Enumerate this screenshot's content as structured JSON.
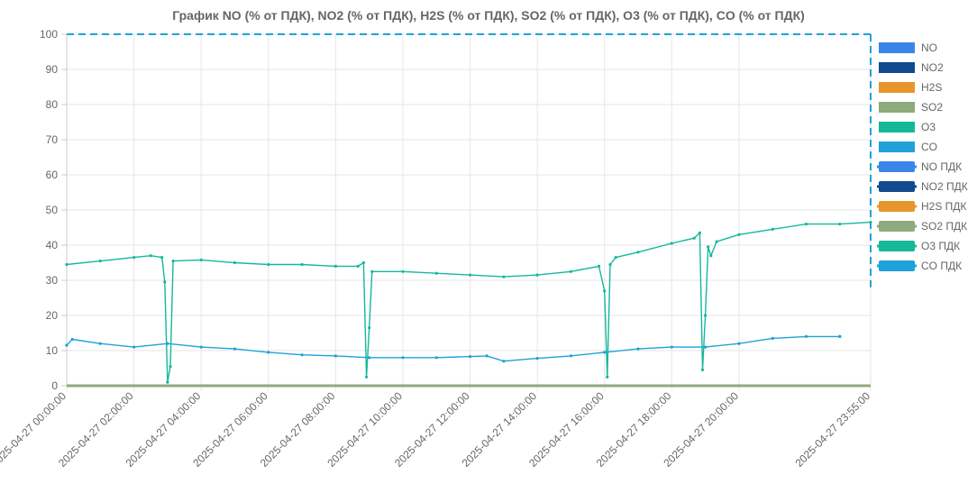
{
  "chart_data": {
    "type": "line",
    "title": "График  NO (% от ПДК), NO2 (% от ПДК), H2S (% от ПДК), SO2 (% от ПДК), O3 (% от ПДК), CO (% от ПДК)",
    "xlabel": "",
    "ylabel": "",
    "ylim": [
      0,
      100
    ],
    "y_ticks": [
      0,
      10,
      20,
      30,
      40,
      50,
      60,
      70,
      80,
      90,
      100
    ],
    "x_range": [
      "2025-04-27 00:00:00",
      "2025-04-27 23:55:00"
    ],
    "x_ticks": [
      "2025-04-27 00:00:00",
      "2025-04-27 02:00:00",
      "2025-04-27 04:00:00",
      "2025-04-27 06:00:00",
      "2025-04-27 08:00:00",
      "2025-04-27 10:00:00",
      "2025-04-27 12:00:00",
      "2025-04-27 14:00:00",
      "2025-04-27 16:00:00",
      "2025-04-27 18:00:00",
      "2025-04-27 20:00:00",
      "2025-04-27 23:55:00"
    ],
    "grid": true,
    "legend_position": "right",
    "series": [
      {
        "name": "NO",
        "color": "#3a86e8",
        "style": "solid",
        "points": [
          [
            "2025-04-27 00:00:00",
            0
          ],
          [
            "2025-04-27 23:55:00",
            0
          ]
        ]
      },
      {
        "name": "NO2",
        "color": "#124a8f",
        "style": "solid",
        "points": [
          [
            "2025-04-27 00:00:00",
            0
          ],
          [
            "2025-04-27 23:55:00",
            0
          ]
        ]
      },
      {
        "name": "H2S",
        "color": "#e8962b",
        "style": "solid",
        "points": [
          [
            "2025-04-27 00:00:00",
            0
          ],
          [
            "2025-04-27 23:55:00",
            0
          ]
        ]
      },
      {
        "name": "SO2",
        "color": "#8faa7c",
        "style": "solid",
        "points": [
          [
            "2025-04-27 00:00:00",
            0
          ],
          [
            "2025-04-27 23:55:00",
            0
          ]
        ]
      },
      {
        "name": "O3",
        "color": "#16b89a",
        "style": "solid",
        "points": [
          [
            "2025-04-27 00:00:00",
            34.5
          ],
          [
            "2025-04-27 01:00:00",
            35.5
          ],
          [
            "2025-04-27 02:00:00",
            36.5
          ],
          [
            "2025-04-27 02:30:00",
            37.0
          ],
          [
            "2025-04-27 02:50:00",
            36.5
          ],
          [
            "2025-04-27 02:55:00",
            29.5
          ],
          [
            "2025-04-27 03:00:00",
            1.0
          ],
          [
            "2025-04-27 03:05:00",
            5.5
          ],
          [
            "2025-04-27 03:10:00",
            35.5
          ],
          [
            "2025-04-27 04:00:00",
            35.8
          ],
          [
            "2025-04-27 05:00:00",
            35.0
          ],
          [
            "2025-04-27 06:00:00",
            34.5
          ],
          [
            "2025-04-27 07:00:00",
            34.5
          ],
          [
            "2025-04-27 08:00:00",
            34.0
          ],
          [
            "2025-04-27 08:40:00",
            34.0
          ],
          [
            "2025-04-27 08:50:00",
            35.0
          ],
          [
            "2025-04-27 08:55:00",
            2.5
          ],
          [
            "2025-04-27 09:00:00",
            16.5
          ],
          [
            "2025-04-27 09:05:00",
            32.5
          ],
          [
            "2025-04-27 10:00:00",
            32.5
          ],
          [
            "2025-04-27 11:00:00",
            32.0
          ],
          [
            "2025-04-27 12:00:00",
            31.5
          ],
          [
            "2025-04-27 13:00:00",
            31.0
          ],
          [
            "2025-04-27 14:00:00",
            31.5
          ],
          [
            "2025-04-27 15:00:00",
            32.5
          ],
          [
            "2025-04-27 15:50:00",
            34.0
          ],
          [
            "2025-04-27 16:00:00",
            27.0
          ],
          [
            "2025-04-27 16:05:00",
            2.5
          ],
          [
            "2025-04-27 16:10:00",
            34.5
          ],
          [
            "2025-04-27 16:20:00",
            36.5
          ],
          [
            "2025-04-27 17:00:00",
            38.0
          ],
          [
            "2025-04-27 18:00:00",
            40.5
          ],
          [
            "2025-04-27 18:40:00",
            42.0
          ],
          [
            "2025-04-27 18:50:00",
            43.5
          ],
          [
            "2025-04-27 18:55:00",
            4.5
          ],
          [
            "2025-04-27 19:00:00",
            20.0
          ],
          [
            "2025-04-27 19:05:00",
            39.5
          ],
          [
            "2025-04-27 19:10:00",
            37.0
          ],
          [
            "2025-04-27 19:20:00",
            41.0
          ],
          [
            "2025-04-27 20:00:00",
            43.0
          ],
          [
            "2025-04-27 21:00:00",
            44.5
          ],
          [
            "2025-04-27 22:00:00",
            46.0
          ],
          [
            "2025-04-27 23:00:00",
            46.0
          ],
          [
            "2025-04-27 23:55:00",
            46.5
          ]
        ]
      },
      {
        "name": "CO",
        "color": "#1fa2d8",
        "style": "solid",
        "points": [
          [
            "2025-04-27 00:00:00",
            11.5
          ],
          [
            "2025-04-27 00:10:00",
            13.2
          ],
          [
            "2025-04-27 01:00:00",
            12.0
          ],
          [
            "2025-04-27 02:00:00",
            11.0
          ],
          [
            "2025-04-27 03:00:00",
            12.0
          ],
          [
            "2025-04-27 04:00:00",
            11.0
          ],
          [
            "2025-04-27 05:00:00",
            10.5
          ],
          [
            "2025-04-27 06:00:00",
            9.5
          ],
          [
            "2025-04-27 07:00:00",
            8.8
          ],
          [
            "2025-04-27 08:00:00",
            8.5
          ],
          [
            "2025-04-27 09:00:00",
            8.0
          ],
          [
            "2025-04-27 10:00:00",
            8.0
          ],
          [
            "2025-04-27 11:00:00",
            8.0
          ],
          [
            "2025-04-27 12:00:00",
            8.3
          ],
          [
            "2025-04-27 12:30:00",
            8.5
          ],
          [
            "2025-04-27 13:00:00",
            7.0
          ],
          [
            "2025-04-27 14:00:00",
            7.8
          ],
          [
            "2025-04-27 15:00:00",
            8.5
          ],
          [
            "2025-04-27 16:00:00",
            9.5
          ],
          [
            "2025-04-27 17:00:00",
            10.5
          ],
          [
            "2025-04-27 18:00:00",
            11.0
          ],
          [
            "2025-04-27 19:00:00",
            11.0
          ],
          [
            "2025-04-27 20:00:00",
            12.0
          ],
          [
            "2025-04-27 21:00:00",
            13.5
          ],
          [
            "2025-04-27 22:00:00",
            14.0
          ],
          [
            "2025-04-27 23:00:00",
            14.0
          ],
          [
            "2025-04-27 23:00:00",
            14.0
          ]
        ]
      },
      {
        "name": "NO ПДК",
        "color": "#3a86e8",
        "style": "dashed",
        "constant": 100
      },
      {
        "name": "NO2 ПДК",
        "color": "#124a8f",
        "style": "dashed",
        "constant": 100
      },
      {
        "name": "H2S ПДК",
        "color": "#e8962b",
        "style": "dashed",
        "constant": 100
      },
      {
        "name": "SO2 ПДК",
        "color": "#8faa7c",
        "style": "dashed",
        "constant": 100
      },
      {
        "name": "O3 ПДК",
        "color": "#16b89a",
        "style": "dashed",
        "constant": 100
      },
      {
        "name": "CO ПДК",
        "color": "#1fa2d8",
        "style": "dashed",
        "constant": 100
      }
    ]
  }
}
